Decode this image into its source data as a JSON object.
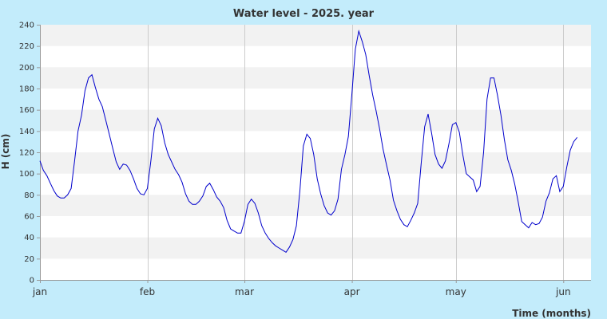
{
  "chart_data": {
    "type": "line",
    "title": "Water level - 2025. year",
    "xlabel": "Time (months)",
    "ylabel": "H (cm)",
    "ylim": [
      0,
      240
    ],
    "yticks": [
      0,
      20,
      40,
      60,
      80,
      100,
      120,
      140,
      160,
      180,
      200,
      220,
      240
    ],
    "xlim_days": [
      0,
      159
    ],
    "months": [
      {
        "label": "jan",
        "day": 0
      },
      {
        "label": "feb",
        "day": 31
      },
      {
        "label": "mar",
        "day": 59
      },
      {
        "label": "apr",
        "day": 90
      },
      {
        "label": "may",
        "day": 120
      },
      {
        "label": "jun",
        "day": 151
      }
    ],
    "grid": true,
    "colors": {
      "line": "#0000cc",
      "band": "#f2f2f2",
      "plot_bg": "#ffffff",
      "page_bg": "#c3ecfb",
      "grid": "#cccccc"
    },
    "series": [
      {
        "values": [
          112,
          103,
          98,
          91,
          84,
          79,
          77,
          77,
          80,
          86,
          112,
          140,
          155,
          178,
          190,
          193,
          181,
          170,
          163,
          150,
          137,
          124,
          111,
          104,
          109,
          108,
          103,
          95,
          86,
          81,
          80,
          86,
          112,
          142,
          152,
          145,
          129,
          118,
          111,
          104,
          99,
          92,
          81,
          74,
          71,
          71,
          74,
          79,
          88,
          91,
          85,
          78,
          74,
          68,
          56,
          48,
          46,
          44,
          44,
          55,
          71,
          76,
          72,
          63,
          51,
          44,
          39,
          35,
          32,
          30,
          28,
          26,
          31,
          38,
          51,
          84,
          126,
          137,
          133,
          118,
          95,
          81,
          70,
          63,
          61,
          65,
          76,
          104,
          118,
          135,
          175,
          217,
          234,
          224,
          212,
          192,
          174,
          159,
          142,
          123,
          108,
          94,
          75,
          65,
          57,
          52,
          50,
          56,
          63,
          72,
          110,
          144,
          156,
          138,
          118,
          109,
          105,
          112,
          128,
          146,
          148,
          139,
          118,
          100,
          97,
          94,
          83,
          88,
          120,
          170,
          190,
          190,
          174,
          155,
          132,
          113,
          103,
          90,
          73,
          55,
          52,
          49,
          54,
          52,
          53,
          59,
          74,
          82,
          95,
          98,
          83,
          88,
          106,
          122,
          130,
          134
        ]
      }
    ]
  }
}
